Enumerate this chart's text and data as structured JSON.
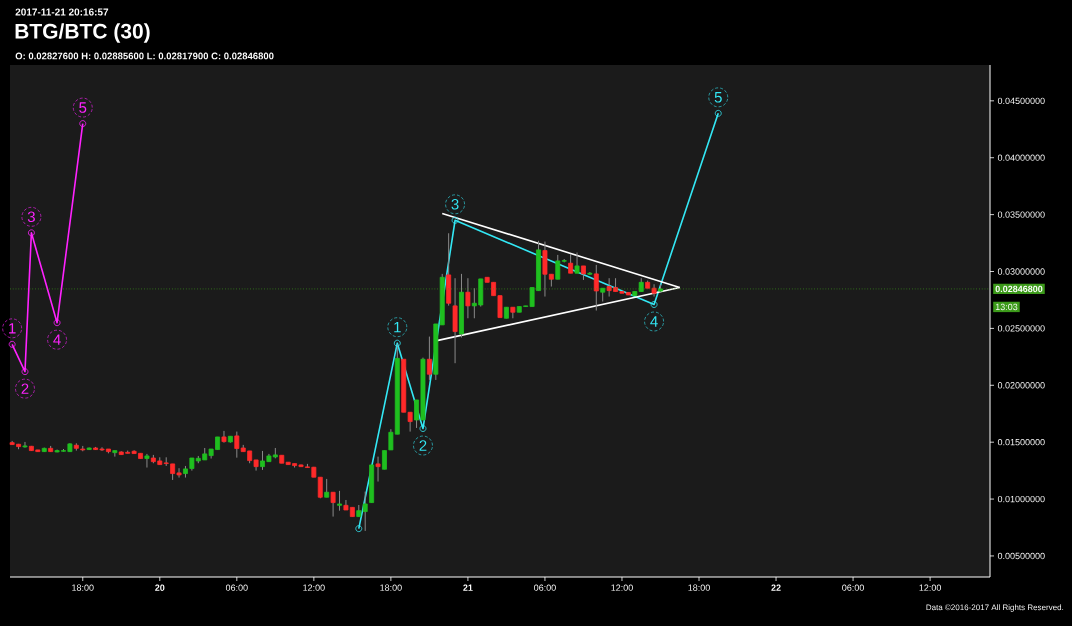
{
  "chart_data": {
    "type": "candlestick",
    "title": "BTG/BTC (30)",
    "subtitle": "O: 0.02827600 H: 0.02885600 L: 0.02817900 C: 0.02846800",
    "x": [
      "2017-11-19T12:30",
      "2017-11-19T13:00",
      "2017-11-19T13:30",
      "2017-11-19T14:00",
      "2017-11-19T14:30",
      "2017-11-19T15:00",
      "2017-11-19T15:30",
      "2017-11-19T16:00",
      "2017-11-19T16:30",
      "2017-11-19T17:00",
      "2017-11-19T17:30",
      "2017-11-19T18:00",
      "2017-11-19T18:30",
      "2017-11-19T19:00",
      "2017-11-19T19:30",
      "2017-11-19T20:00",
      "2017-11-19T20:30",
      "2017-11-19T21:00",
      "2017-11-19T21:30",
      "2017-11-19T22:00",
      "2017-11-19T22:30",
      "2017-11-19T23:00",
      "2017-11-19T23:30",
      "2017-11-20T00:00",
      "2017-11-20T00:30",
      "2017-11-20T01:00",
      "2017-11-20T01:30",
      "2017-11-20T02:00",
      "2017-11-20T02:30",
      "2017-11-20T03:00",
      "2017-11-20T03:30",
      "2017-11-20T04:00",
      "2017-11-20T04:30",
      "2017-11-20T05:00",
      "2017-11-20T05:30",
      "2017-11-20T06:00",
      "2017-11-20T06:30",
      "2017-11-20T07:00",
      "2017-11-20T07:30",
      "2017-11-20T08:00",
      "2017-11-20T08:30",
      "2017-11-20T09:00",
      "2017-11-20T09:30",
      "2017-11-20T10:00",
      "2017-11-20T10:30",
      "2017-11-20T11:00",
      "2017-11-20T11:30",
      "2017-11-20T12:00",
      "2017-11-20T12:30",
      "2017-11-20T13:00",
      "2017-11-20T13:30",
      "2017-11-20T14:00",
      "2017-11-20T14:30",
      "2017-11-20T15:00",
      "2017-11-20T15:30",
      "2017-11-20T16:00",
      "2017-11-20T16:30",
      "2017-11-20T17:00",
      "2017-11-20T17:30",
      "2017-11-20T18:00",
      "2017-11-20T18:30",
      "2017-11-20T19:00",
      "2017-11-20T19:30",
      "2017-11-20T20:00",
      "2017-11-20T20:30",
      "2017-11-20T21:00",
      "2017-11-20T21:30",
      "2017-11-20T22:00",
      "2017-11-20T22:30",
      "2017-11-20T23:00",
      "2017-11-20T23:30",
      "2017-11-21T00:00",
      "2017-11-21T00:30",
      "2017-11-21T01:00",
      "2017-11-21T01:30",
      "2017-11-21T02:00",
      "2017-11-21T02:30",
      "2017-11-21T03:00",
      "2017-11-21T03:30",
      "2017-11-21T04:00",
      "2017-11-21T04:30",
      "2017-11-21T05:00",
      "2017-11-21T05:30",
      "2017-11-21T06:00",
      "2017-11-21T06:30",
      "2017-11-21T07:00",
      "2017-11-21T07:30",
      "2017-11-21T08:00",
      "2017-11-21T08:30",
      "2017-11-21T09:00",
      "2017-11-21T09:30",
      "2017-11-21T10:00",
      "2017-11-21T10:30",
      "2017-11-21T11:00",
      "2017-11-21T11:30",
      "2017-11-21T12:00",
      "2017-11-21T12:30",
      "2017-11-21T13:00",
      "2017-11-21T13:30",
      "2017-11-21T14:00",
      "2017-11-21T14:30",
      "2017-11-21T15:00"
    ],
    "ohlc": [
      [
        0.01496,
        0.01511,
        0.01476,
        0.01479
      ],
      [
        0.01482,
        0.01485,
        0.01438,
        0.01461
      ],
      [
        0.01458,
        0.01502,
        0.01452,
        0.01467
      ],
      [
        0.01464,
        0.01467,
        0.01423,
        0.01426
      ],
      [
        0.01432,
        0.01432,
        0.01417,
        0.01417
      ],
      [
        0.01417,
        0.01452,
        0.01414,
        0.01446
      ],
      [
        0.01446,
        0.01467,
        0.01414,
        0.01417
      ],
      [
        0.01414,
        0.01435,
        0.01411,
        0.01426
      ],
      [
        0.0142,
        0.0144,
        0.01417,
        0.01426
      ],
      [
        0.01417,
        0.0149,
        0.01414,
        0.01485
      ],
      [
        0.01473,
        0.0149,
        0.01426,
        0.01446
      ],
      [
        0.0144,
        0.01467,
        0.0142,
        0.01432
      ],
      [
        0.01435,
        0.01452,
        0.01432,
        0.01449
      ],
      [
        0.01449,
        0.01458,
        0.01432,
        0.01435
      ],
      [
        0.0144,
        0.01455,
        0.01423,
        0.01432
      ],
      [
        0.0144,
        0.0144,
        0.01402,
        0.01417
      ],
      [
        0.01408,
        0.01426,
        0.01373,
        0.01426
      ],
      [
        0.01414,
        0.0142,
        0.01388,
        0.01391
      ],
      [
        0.01411,
        0.01426,
        0.01402,
        0.01402
      ],
      [
        0.0142,
        0.01429,
        0.014,
        0.014
      ],
      [
        0.01402,
        0.01402,
        0.01356,
        0.01356
      ],
      [
        0.01356,
        0.01397,
        0.01277,
        0.01379
      ],
      [
        0.01361,
        0.01388,
        0.01315,
        0.01329
      ],
      [
        0.01335,
        0.01367,
        0.01303,
        0.01303
      ],
      [
        0.01318,
        0.01367,
        0.01291,
        0.01312
      ],
      [
        0.01309,
        0.01309,
        0.01168,
        0.01224
      ],
      [
        0.0123,
        0.01271,
        0.01189,
        0.01212
      ],
      [
        0.01224,
        0.01291,
        0.01189,
        0.01265
      ],
      [
        0.01268,
        0.01361,
        0.0125,
        0.01361
      ],
      [
        0.01335,
        0.01379,
        0.01315,
        0.01358
      ],
      [
        0.01344,
        0.01449,
        0.01344,
        0.01397
      ],
      [
        0.01382,
        0.0144,
        0.01356,
        0.0144
      ],
      [
        0.01435,
        0.01546,
        0.01435,
        0.01546
      ],
      [
        0.01546,
        0.01599,
        0.01496,
        0.01505
      ],
      [
        0.01502,
        0.01552,
        0.01496,
        0.01552
      ],
      [
        0.01555,
        0.01593,
        0.01364,
        0.01444
      ],
      [
        0.01449,
        0.01476,
        0.01417,
        0.01417
      ],
      [
        0.01423,
        0.01423,
        0.01315,
        0.01338
      ],
      [
        0.01344,
        0.01344,
        0.0125,
        0.01285
      ],
      [
        0.01285,
        0.01423,
        0.01256,
        0.01335
      ],
      [
        0.01329,
        0.01397,
        0.01329,
        0.01379
      ],
      [
        0.0137,
        0.01449,
        0.01358,
        0.01388
      ],
      [
        0.01385,
        0.01385,
        0.01315,
        0.01315
      ],
      [
        0.01324,
        0.01324,
        0.01303,
        0.01303
      ],
      [
        0.01312,
        0.01312,
        0.01277,
        0.01294
      ],
      [
        0.013,
        0.01303,
        0.01285,
        0.01285
      ],
      [
        0.01283,
        0.01309,
        0.01277,
        0.01277
      ],
      [
        0.0128,
        0.01283,
        0.01192,
        0.01192
      ],
      [
        0.01192,
        0.01192,
        0.01007,
        0.01016
      ],
      [
        0.01016,
        0.01177,
        0.01016,
        0.0106
      ],
      [
        0.0106,
        0.0106,
        0.00846,
        0.00969
      ],
      [
        0.00945,
        0.01072,
        0.00898,
        0.00957
      ],
      [
        0.00945,
        0.00992,
        0.00904,
        0.00904
      ],
      [
        0.00927,
        0.00927,
        0.00846,
        0.00846
      ],
      [
        0.00846,
        0.00948,
        0.00846,
        0.00898
      ],
      [
        0.0089,
        0.01065,
        0.0072,
        0.00957
      ],
      [
        0.00969,
        0.013,
        0.00969,
        0.013
      ],
      [
        0.01309,
        0.01373,
        0.01154,
        0.01285
      ],
      [
        0.01262,
        0.01426,
        0.01262,
        0.01426
      ],
      [
        0.01432,
        0.01614,
        0.01432,
        0.01587
      ],
      [
        0.0157,
        0.0236,
        0.0157,
        0.02237
      ],
      [
        0.02229,
        0.02229,
        0.01763,
        0.01763
      ],
      [
        0.01763,
        0.01763,
        0.01593,
        0.01681
      ],
      [
        0.01695,
        0.01871,
        0.01625,
        0.01871
      ],
      [
        0.01695,
        0.02243,
        0.01695,
        0.02229
      ],
      [
        0.02229,
        0.02428,
        0.02047,
        0.02097
      ],
      [
        0.02097,
        0.02539,
        0.02047,
        0.02539
      ],
      [
        0.02531,
        0.02979,
        0.02531,
        0.02949
      ],
      [
        0.0297,
        0.03336,
        0.027,
        0.02721
      ],
      [
        0.02698,
        0.02941,
        0.02194,
        0.02472
      ],
      [
        0.02451,
        0.02979,
        0.0242,
        0.02818
      ],
      [
        0.02818,
        0.02941,
        0.02589,
        0.02698
      ],
      [
        0.02698,
        0.02853,
        0.02589,
        0.02721
      ],
      [
        0.02706,
        0.02935,
        0.02692,
        0.02935
      ],
      [
        0.02949,
        0.02949,
        0.02905,
        0.02905
      ],
      [
        0.02905,
        0.02905,
        0.02788,
        0.02788
      ],
      [
        0.02788,
        0.02788,
        0.02595,
        0.02595
      ],
      [
        0.02589,
        0.02686,
        0.02589,
        0.02686
      ],
      [
        0.02686,
        0.02686,
        0.02589,
        0.02642
      ],
      [
        0.02642,
        0.02692,
        0.02642,
        0.02692
      ],
      [
        0.02692,
        0.02698,
        0.02692,
        0.02698
      ],
      [
        0.02692,
        0.02859,
        0.02692,
        0.02859
      ],
      [
        0.02832,
        0.0327,
        0.02832,
        0.0319
      ],
      [
        0.03184,
        0.03263,
        0.0278,
        0.02976
      ],
      [
        0.02976,
        0.02976,
        0.02868,
        0.02932
      ],
      [
        0.02932,
        0.03146,
        0.02932,
        0.03093
      ],
      [
        0.0309,
        0.0311,
        0.0308,
        0.03096
      ],
      [
        0.03073,
        0.03155,
        0.02985,
        0.02985
      ],
      [
        0.02985,
        0.03167,
        0.02985,
        0.03049
      ],
      [
        0.03049,
        0.03049,
        0.02926,
        0.02979
      ],
      [
        0.02976,
        0.02995,
        0.0297,
        0.02985
      ],
      [
        0.02979,
        0.03058,
        0.02657,
        0.02829
      ],
      [
        0.02818,
        0.02853,
        0.02736,
        0.02853
      ],
      [
        0.02868,
        0.02941,
        0.0278,
        0.02832
      ],
      [
        0.02859,
        0.02941,
        0.02824,
        0.02824
      ],
      [
        0.02824,
        0.02824,
        0.02809,
        0.02809
      ],
      [
        0.02815,
        0.02815,
        0.02794,
        0.02794
      ],
      [
        0.02788,
        0.02824,
        0.02788,
        0.02824
      ],
      [
        0.02824,
        0.02941,
        0.02824,
        0.02905
      ],
      [
        0.02905,
        0.0292,
        0.02853,
        0.02853
      ],
      [
        0.02853,
        0.02888,
        0.0278,
        0.02809
      ],
      [
        0.028276,
        0.028856,
        0.028179,
        0.028468
      ]
    ],
    "series": [
      {
        "type": "line",
        "color": "#ff22ff",
        "marker": "circle",
        "x": [
          "2017-11-19T12:30",
          "2017-11-19T13:30",
          "2017-11-19T14:00",
          "2017-11-19T16:00",
          "2017-11-19T18:00"
        ],
        "values": [
          0.0236,
          0.0212,
          0.0334,
          0.0255,
          0.043
        ]
      },
      {
        "type": "line",
        "color": "#33e8f5",
        "marker": "circle",
        "x": [
          "2017-11-20T15:30",
          "2017-11-20T18:30",
          "2017-11-20T20:30",
          "2017-11-20T23:00",
          "2017-11-21T14:30",
          "2017-11-21T19:30"
        ],
        "values": [
          0.0074,
          0.0237,
          0.0162,
          0.0345,
          0.0271,
          0.0439
        ]
      },
      {
        "type": "line",
        "color": "#ffffff",
        "marker": "none",
        "x": [
          "2017-11-20T22:00",
          "2017-11-21T16:30"
        ],
        "values": [
          0.0351,
          0.0286
        ]
      },
      {
        "type": "line",
        "color": "#ffffff",
        "marker": "none",
        "x": [
          "2017-11-20T21:30",
          "2017-11-21T16:30"
        ],
        "values": [
          0.0239,
          0.0286
        ]
      }
    ],
    "ref_lines": [
      {
        "axis": "y",
        "value": 0.028468,
        "label": "0.02846800",
        "color": "#3c9a1a",
        "line_style": "dotted"
      }
    ],
    "annotations": [
      "2017-11-21 20:16:57",
      "13:03",
      "Data ©2016-2017 All Rights Reserved.",
      {
        "text": "1",
        "x": "2017-11-19T12:30",
        "y": 0.0236
      },
      {
        "text": "2",
        "x": "2017-11-19T13:30",
        "y": 0.0212
      },
      {
        "text": "3",
        "x": "2017-11-19T14:00",
        "y": 0.0334
      },
      {
        "text": "4",
        "x": "2017-11-19T16:00",
        "y": 0.0255
      },
      {
        "text": "5",
        "x": "2017-11-19T18:00",
        "y": 0.043
      },
      {
        "text": "1",
        "x": "2017-11-20T18:30",
        "y": 0.0237
      },
      {
        "text": "2",
        "x": "2017-11-20T20:30",
        "y": 0.0162
      },
      {
        "text": "3",
        "x": "2017-11-20T23:00",
        "y": 0.0345
      },
      {
        "text": "4",
        "x": "2017-11-21T14:30",
        "y": 0.0271
      },
      {
        "text": "5",
        "x": "2017-11-21T19:30",
        "y": 0.0439
      }
    ],
    "xlim": [
      "2017-11-19T12:20",
      "2017-11-22T16:40"
    ],
    "xticks": [
      {
        "value": "2017-11-19T18:00",
        "label": "18:00"
      },
      {
        "value": "2017-11-20T00:00",
        "label": "20"
      },
      {
        "value": "2017-11-20T06:00",
        "label": "06:00"
      },
      {
        "value": "2017-11-20T12:00",
        "label": "12:00"
      },
      {
        "value": "2017-11-20T18:00",
        "label": "18:00"
      },
      {
        "value": "2017-11-21T00:00",
        "label": "21"
      },
      {
        "value": "2017-11-21T06:00",
        "label": "06:00"
      },
      {
        "value": "2017-11-21T12:00",
        "label": "12:00"
      },
      {
        "value": "2017-11-21T18:00",
        "label": "18:00"
      },
      {
        "value": "2017-11-22T00:00",
        "label": "22"
      },
      {
        "value": "2017-11-22T06:00",
        "label": "06:00"
      },
      {
        "value": "2017-11-22T12:00",
        "label": "12:00"
      }
    ],
    "ylim": [
      0.00315,
      0.04815
    ],
    "yticks": [
      {
        "value": 0.005,
        "label": "0.00500000"
      },
      {
        "value": 0.01,
        "label": "0.01000000"
      },
      {
        "value": 0.015,
        "label": "0.01500000"
      },
      {
        "value": 0.02,
        "label": "0.02000000"
      },
      {
        "value": 0.025,
        "label": "0.02500000"
      },
      {
        "value": 0.03,
        "label": "0.03000000"
      },
      {
        "value": 0.035,
        "label": "0.03500000"
      },
      {
        "value": 0.04,
        "label": "0.04000000"
      },
      {
        "value": 0.045,
        "label": "0.04500000"
      }
    ]
  }
}
